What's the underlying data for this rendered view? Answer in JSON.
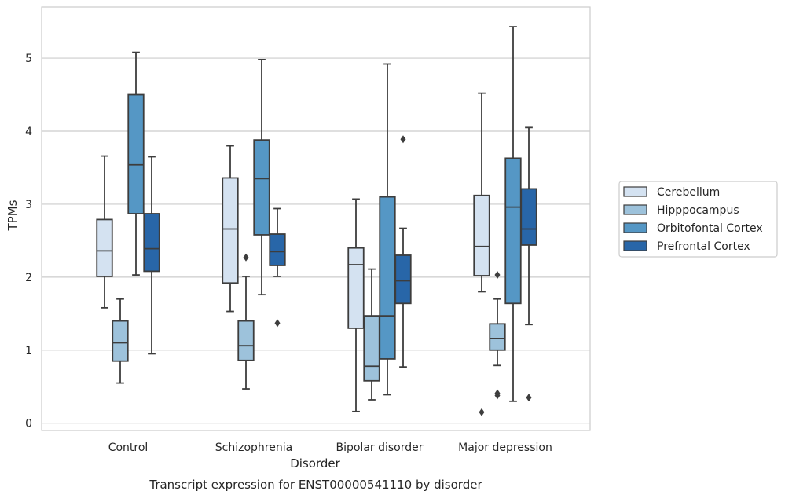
{
  "chart_data": {
    "type": "box",
    "title": "",
    "caption": "Transcript expression for ENST00000541110 by disorder",
    "xlabel": "Disorder",
    "ylabel": "TPMs",
    "ylim": [
      -0.1,
      5.7
    ],
    "yticks": [
      0,
      1,
      2,
      3,
      4,
      5
    ],
    "grid": "horizontal",
    "legend_position": "right",
    "categories": [
      "Control",
      "Schizophrenia",
      "Bipolar disorder",
      "Major depression"
    ],
    "series": [
      {
        "name": "Cerebellum",
        "color": "#d4e2f1",
        "boxes": [
          {
            "whisker_low": 1.58,
            "q1": 2.01,
            "median": 2.36,
            "q3": 2.79,
            "whisker_high": 3.66,
            "outliers": []
          },
          {
            "whisker_low": 1.53,
            "q1": 1.92,
            "median": 2.66,
            "q3": 3.36,
            "whisker_high": 3.8,
            "outliers": []
          },
          {
            "whisker_low": 0.16,
            "q1": 1.3,
            "median": 2.17,
            "q3": 2.4,
            "whisker_high": 3.07,
            "outliers": []
          },
          {
            "whisker_low": 1.8,
            "q1": 2.02,
            "median": 2.42,
            "q3": 3.12,
            "whisker_high": 4.52,
            "outliers": [
              0.15
            ]
          }
        ]
      },
      {
        "name": "Hipppocampus",
        "color": "#9dc2db",
        "boxes": [
          {
            "whisker_low": 0.55,
            "q1": 0.85,
            "median": 1.1,
            "q3": 1.4,
            "whisker_high": 1.7,
            "outliers": []
          },
          {
            "whisker_low": 0.47,
            "q1": 0.86,
            "median": 1.06,
            "q3": 1.4,
            "whisker_high": 2.01,
            "outliers": [
              2.27
            ]
          },
          {
            "whisker_low": 0.32,
            "q1": 0.58,
            "median": 0.78,
            "q3": 1.47,
            "whisker_high": 2.11,
            "outliers": []
          },
          {
            "whisker_low": 0.79,
            "q1": 1.0,
            "median": 1.16,
            "q3": 1.36,
            "whisker_high": 1.7,
            "outliers": [
              2.03,
              0.41,
              0.38
            ]
          }
        ]
      },
      {
        "name": "Orbitofontal Cortex",
        "color": "#5597c5",
        "boxes": [
          {
            "whisker_low": 2.03,
            "q1": 2.87,
            "median": 3.54,
            "q3": 4.5,
            "whisker_high": 5.08,
            "outliers": []
          },
          {
            "whisker_low": 1.76,
            "q1": 2.58,
            "median": 3.35,
            "q3": 3.88,
            "whisker_high": 4.98,
            "outliers": []
          },
          {
            "whisker_low": 0.39,
            "q1": 0.88,
            "median": 1.47,
            "q3": 3.1,
            "whisker_high": 4.92,
            "outliers": []
          },
          {
            "whisker_low": 0.3,
            "q1": 1.64,
            "median": 2.96,
            "q3": 3.63,
            "whisker_high": 5.43,
            "outliers": []
          }
        ]
      },
      {
        "name": "Prefrontal Cortex",
        "color": "#2866a8",
        "boxes": [
          {
            "whisker_low": 0.95,
            "q1": 2.08,
            "median": 2.39,
            "q3": 2.87,
            "whisker_high": 3.65,
            "outliers": []
          },
          {
            "whisker_low": 2.01,
            "q1": 2.16,
            "median": 2.35,
            "q3": 2.59,
            "whisker_high": 2.94,
            "outliers": [
              1.37
            ]
          },
          {
            "whisker_low": 0.77,
            "q1": 1.64,
            "median": 1.95,
            "q3": 2.3,
            "whisker_high": 2.67,
            "outliers": [
              3.89
            ]
          },
          {
            "whisker_low": 1.35,
            "q1": 2.44,
            "median": 2.66,
            "q3": 3.21,
            "whisker_high": 4.05,
            "outliers": [
              0.35
            ]
          }
        ]
      }
    ]
  }
}
